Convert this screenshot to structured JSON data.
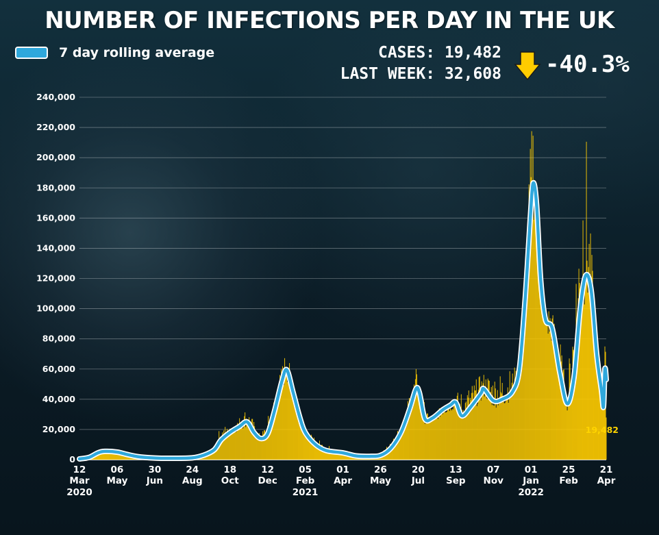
{
  "colors": {
    "background": "#0c1f2a",
    "bars": "#ffcc00",
    "line": "#2fa8dc",
    "line_outline": "#ffffff",
    "text": "#ffffff",
    "highlight": "#ffd400"
  },
  "header": {
    "title": "NUMBER OF INFECTIONS PER DAY IN THE UK",
    "legend_label": "7 day rolling average",
    "cases_text": "CASES: 19,482",
    "last_week_text": "LAST WEEK: 32,608",
    "change_text": "-40.3%",
    "change_icon": "down-arrow-icon"
  },
  "chart_data": {
    "type": "bar",
    "title": "NUMBER OF INFECTIONS PER DAY IN THE UK",
    "xlabel": "",
    "ylabel": "",
    "ylim": [
      0,
      240000
    ],
    "y_ticks": [
      0,
      20000,
      40000,
      60000,
      80000,
      100000,
      120000,
      140000,
      160000,
      180000,
      200000,
      220000,
      240000
    ],
    "y_tick_labels": [
      "0",
      "20,000",
      "40,000",
      "60,000",
      "80,000",
      "100,000",
      "120,000",
      "140,000",
      "160,000",
      "180,000",
      "200,000",
      "220,000",
      "240,000"
    ],
    "grid": true,
    "x_range": [
      "2020-03-12",
      "2022-04-21"
    ],
    "x_ticks": [
      {
        "date": "2020-03-12",
        "day": "12",
        "month": "Mar"
      },
      {
        "date": "2020-05-06",
        "day": "06",
        "month": "May"
      },
      {
        "date": "2020-06-30",
        "day": "30",
        "month": "Jun"
      },
      {
        "date": "2020-08-24",
        "day": "24",
        "month": "Aug"
      },
      {
        "date": "2020-10-18",
        "day": "18",
        "month": "Oct"
      },
      {
        "date": "2020-12-12",
        "day": "12",
        "month": "Dec"
      },
      {
        "date": "2021-02-05",
        "day": "05",
        "month": "Feb"
      },
      {
        "date": "2021-04-01",
        "day": "01",
        "month": "Apr"
      },
      {
        "date": "2021-05-26",
        "day": "26",
        "month": "May"
      },
      {
        "date": "2021-07-20",
        "day": "20",
        "month": "Jul"
      },
      {
        "date": "2021-09-13",
        "day": "13",
        "month": "Sep"
      },
      {
        "date": "2021-11-07",
        "day": "07",
        "month": "Nov"
      },
      {
        "date": "2022-01-01",
        "day": "01",
        "month": "Jan"
      },
      {
        "date": "2022-02-25",
        "day": "25",
        "month": "Feb"
      },
      {
        "date": "2022-04-21",
        "day": "21",
        "month": "Apr"
      }
    ],
    "year_labels": [
      {
        "date": "2020-03-12",
        "label": "2020"
      },
      {
        "date": "2021-02-05",
        "label": "2021"
      },
      {
        "date": "2022-01-01",
        "label": "2022"
      }
    ],
    "series": [
      {
        "name": "7 day rolling average",
        "type": "line",
        "points": [
          [
            "2020-03-12",
            500
          ],
          [
            "2020-03-26",
            1500
          ],
          [
            "2020-04-08",
            4500
          ],
          [
            "2020-04-18",
            5500
          ],
          [
            "2020-05-06",
            5000
          ],
          [
            "2020-05-20",
            3500
          ],
          [
            "2020-06-05",
            2000
          ],
          [
            "2020-06-30",
            1100
          ],
          [
            "2020-07-25",
            900
          ],
          [
            "2020-08-24",
            1200
          ],
          [
            "2020-09-10",
            3000
          ],
          [
            "2020-09-25",
            6500
          ],
          [
            "2020-10-05",
            13000
          ],
          [
            "2020-10-18",
            18000
          ],
          [
            "2020-11-01",
            22000
          ],
          [
            "2020-11-12",
            25000
          ],
          [
            "2020-11-22",
            18000
          ],
          [
            "2020-12-02",
            14000
          ],
          [
            "2020-12-12",
            17000
          ],
          [
            "2020-12-22",
            32000
          ],
          [
            "2021-01-02",
            52000
          ],
          [
            "2021-01-09",
            59500
          ],
          [
            "2021-01-18",
            45000
          ],
          [
            "2021-01-28",
            28000
          ],
          [
            "2021-02-05",
            18000
          ],
          [
            "2021-02-20",
            10000
          ],
          [
            "2021-03-08",
            6000
          ],
          [
            "2021-04-01",
            4500
          ],
          [
            "2021-04-20",
            2500
          ],
          [
            "2021-05-10",
            2200
          ],
          [
            "2021-05-26",
            2800
          ],
          [
            "2021-06-10",
            7500
          ],
          [
            "2021-06-25",
            18000
          ],
          [
            "2021-07-08",
            34000
          ],
          [
            "2021-07-17",
            47000
          ],
          [
            "2021-07-22",
            44000
          ],
          [
            "2021-07-30",
            27000
          ],
          [
            "2021-08-10",
            27500
          ],
          [
            "2021-08-25",
            33000
          ],
          [
            "2021-09-05",
            36000
          ],
          [
            "2021-09-13",
            38000
          ],
          [
            "2021-09-22",
            29000
          ],
          [
            "2021-10-05",
            35000
          ],
          [
            "2021-10-20",
            44000
          ],
          [
            "2021-10-24",
            47000
          ],
          [
            "2021-11-07",
            39000
          ],
          [
            "2021-11-20",
            40000
          ],
          [
            "2021-12-05",
            45000
          ],
          [
            "2021-12-15",
            60000
          ],
          [
            "2021-12-24",
            110000
          ],
          [
            "2021-12-31",
            160000
          ],
          [
            "2022-01-04",
            183000
          ],
          [
            "2022-01-09",
            170000
          ],
          [
            "2022-01-15",
            120000
          ],
          [
            "2022-01-22",
            93000
          ],
          [
            "2022-02-01",
            87000
          ],
          [
            "2022-02-12",
            58000
          ],
          [
            "2022-02-23",
            37000
          ],
          [
            "2022-03-05",
            55000
          ],
          [
            "2022-03-14",
            100000
          ],
          [
            "2022-03-22",
            122000
          ],
          [
            "2022-03-30",
            112000
          ],
          [
            "2022-04-07",
            70000
          ],
          [
            "2022-04-14",
            46000
          ],
          [
            "2022-04-17",
            35000
          ],
          [
            "2022-04-19",
            60000
          ],
          [
            "2022-04-21",
            53000
          ]
        ]
      },
      {
        "name": "",
        "type": "bar",
        "points": [
          [
            "2020-03-12",
            500
          ],
          [
            "2020-04-10",
            5500
          ],
          [
            "2020-05-06",
            5500
          ],
          [
            "2020-06-15",
            1500
          ],
          [
            "2020-08-24",
            1200
          ],
          [
            "2020-09-25",
            7000
          ],
          [
            "2020-10-05",
            23000
          ],
          [
            "2020-10-18",
            19000
          ],
          [
            "2020-11-01",
            26000
          ],
          [
            "2020-11-12",
            33000
          ],
          [
            "2020-12-02",
            14000
          ],
          [
            "2020-12-20",
            36000
          ],
          [
            "2021-01-09",
            68000
          ],
          [
            "2021-01-20",
            40000
          ],
          [
            "2021-02-05",
            17000
          ],
          [
            "2021-04-01",
            4000
          ],
          [
            "2021-05-26",
            3000
          ],
          [
            "2021-06-25",
            20000
          ],
          [
            "2021-07-17",
            55000
          ],
          [
            "2021-08-05",
            24000
          ],
          [
            "2021-09-13",
            40000
          ],
          [
            "2021-10-24",
            52000
          ],
          [
            "2021-12-15",
            56000
          ],
          [
            "2021-12-24",
            122000
          ],
          [
            "2021-12-31",
            189000
          ],
          [
            "2022-01-04",
            218000
          ],
          [
            "2022-01-09",
            150000
          ],
          [
            "2022-01-22",
            94000
          ],
          [
            "2022-02-10",
            82000
          ],
          [
            "2022-02-23",
            38000
          ],
          [
            "2022-03-05",
            126000
          ],
          [
            "2022-03-14",
            171000
          ],
          [
            "2022-03-18",
            226000
          ],
          [
            "2022-03-22",
            215000
          ],
          [
            "2022-03-28",
            143000
          ],
          [
            "2022-04-05",
            91000
          ],
          [
            "2022-04-14",
            36000
          ],
          [
            "2022-04-19",
            116000
          ],
          [
            "2022-04-21",
            19482
          ]
        ]
      }
    ],
    "annotations": [
      {
        "date": "2022-04-21",
        "value": 19482,
        "label": "19,482"
      }
    ]
  }
}
